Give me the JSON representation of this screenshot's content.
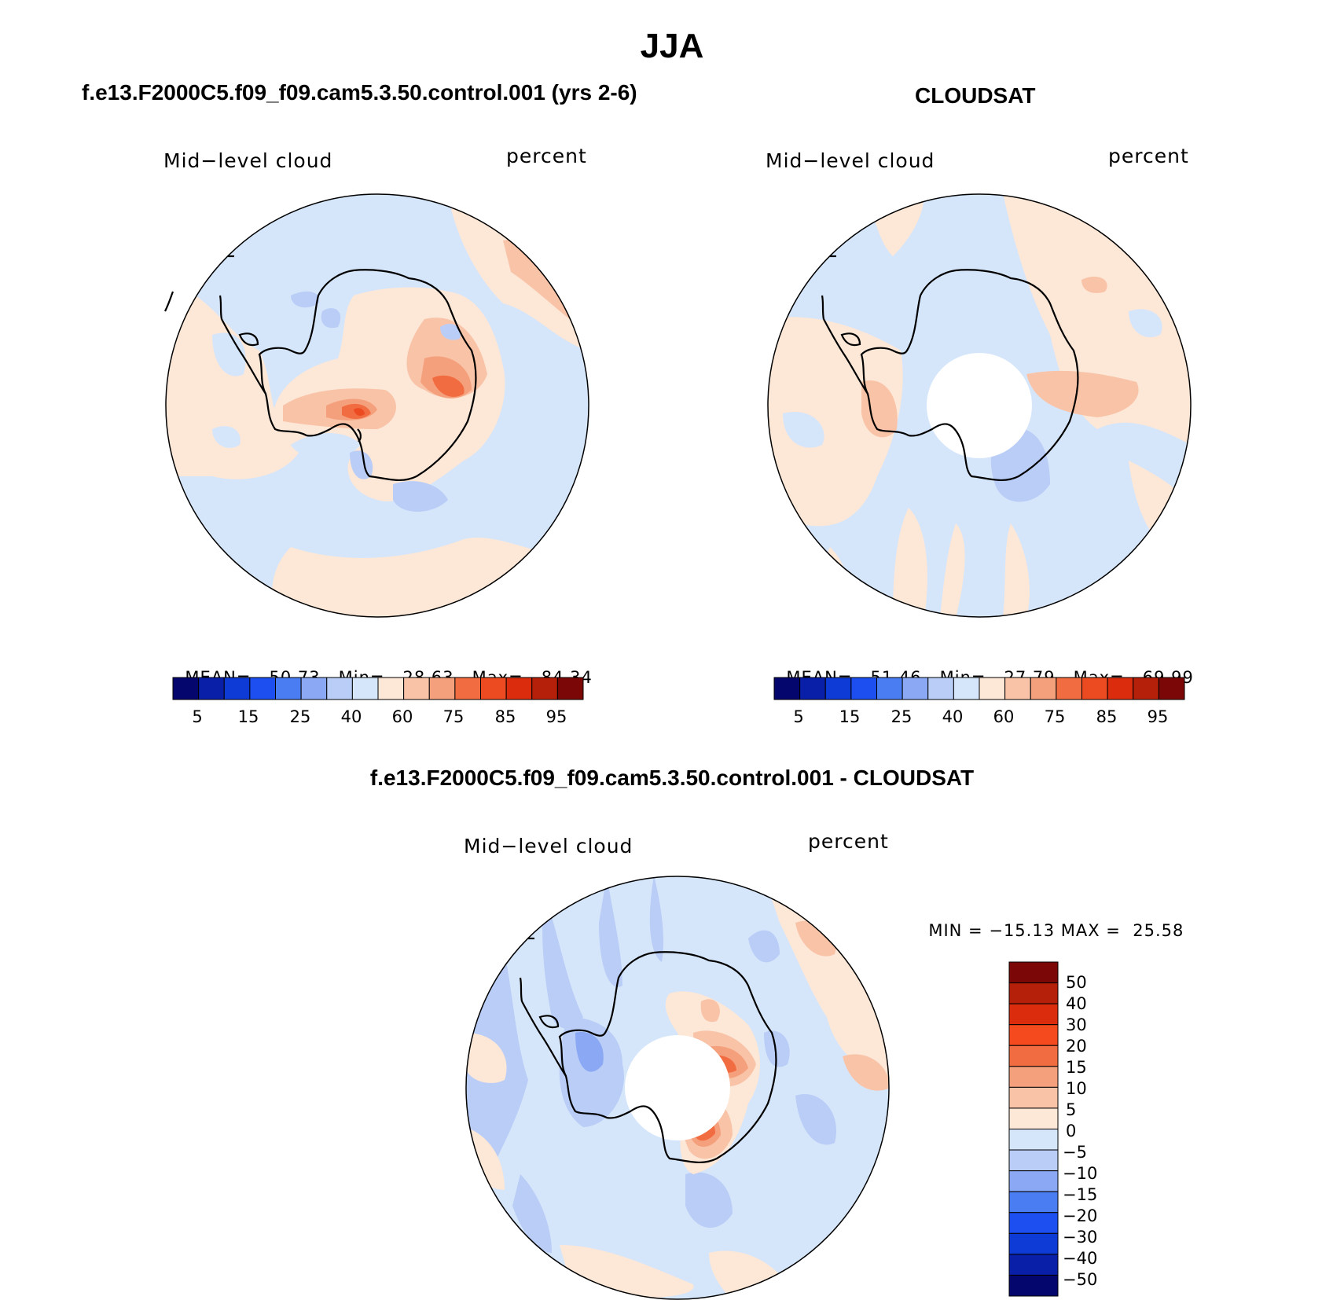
{
  "title": "JJA",
  "panels": {
    "model": {
      "header": "f.e13.F2000C5.f09_f09.cam5.3.50.control.001 (yrs 2-6)",
      "field_label": "Mid−level cloud",
      "units_label": "percent",
      "stats": {
        "mean_label": "MEAN=",
        "mean": "50.73",
        "min_label": "Min=",
        "min": "28.63",
        "max_label": "Max=",
        "max": "84.34"
      }
    },
    "obs": {
      "header": "CLOUDSAT",
      "field_label": "Mid−level cloud",
      "units_label": "percent",
      "stats": {
        "mean_label": "MEAN=",
        "mean": "51.46",
        "min_label": "Min=",
        "min": "27.79",
        "max_label": "Max=",
        "max": "69.99"
      }
    },
    "diff": {
      "header": "f.e13.F2000C5.f09_f09.cam5.3.50.control.001 - CLOUDSAT",
      "field_label": "Mid−level cloud",
      "units_label": "percent",
      "stats": {
        "min_label": "MIN =",
        "min": "−15.13",
        "max_label": "MAX =",
        "max": "25.58"
      }
    }
  },
  "colorbar_abs": {
    "ticks": [
      "5",
      "15",
      "25",
      "40",
      "60",
      "75",
      "85",
      "95"
    ],
    "colors": [
      "#05056e",
      "#0a1fa8",
      "#0e3ad6",
      "#1d4ff0",
      "#4a7cf2",
      "#8aa8f3",
      "#b9cdf7",
      "#d6e6fa",
      "#fde7d7",
      "#f9c3a8",
      "#f5a07c",
      "#f26c42",
      "#ec4a21",
      "#db2c0e",
      "#b5200a",
      "#7b0706"
    ]
  },
  "colorbar_diff": {
    "ticks": [
      "50",
      "40",
      "30",
      "20",
      "15",
      "10",
      "5",
      "0",
      "−5",
      "−10",
      "−15",
      "−20",
      "−30",
      "−40",
      "−50"
    ],
    "colors": [
      "#7b0706",
      "#b5200a",
      "#db2c0e",
      "#f54a1e",
      "#f26c42",
      "#f5a07c",
      "#f9c3a8",
      "#fde7d7",
      "#d6e6fa",
      "#b9cdf7",
      "#8aa8f3",
      "#4a7cf2",
      "#1d4ff0",
      "#0e3ad6",
      "#0a1fa8",
      "#05056e"
    ]
  }
}
